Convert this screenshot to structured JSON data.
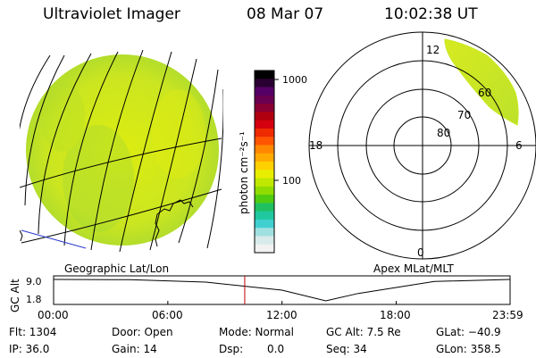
{
  "header": {
    "instrument": "Ultraviolet Imager",
    "date": "08 Mar 07",
    "time": "10:02:38 UT"
  },
  "panels": {
    "left_caption": "Geographic Lat/Lon",
    "right_caption": "Apex MLat/MLT"
  },
  "colorbar": {
    "label": "photon cm⁻²s⁻¹",
    "ticks": [
      "1000",
      "100"
    ],
    "colors": [
      "#000000",
      "#2a0033",
      "#550066",
      "#6a0052",
      "#8a0033",
      "#b00010",
      "#d40010",
      "#ee2a00",
      "#ff5500",
      "#ff8800",
      "#ffaa00",
      "#ffd000",
      "#e8ee00",
      "#c0e800",
      "#90dc00",
      "#50cc10",
      "#20c060",
      "#20c8a0",
      "#40d0d0",
      "#a0e0e0",
      "#d8eaea",
      "#f2f2f2"
    ],
    "scale": "log"
  },
  "polar": {
    "mlt_labels": [
      "12",
      "18",
      "6",
      "0"
    ],
    "lat_labels": [
      "60",
      "70",
      "80"
    ]
  },
  "timeline": {
    "ylabel": "GC Alt",
    "yticks": [
      "9.0",
      "1.8"
    ],
    "xticks": [
      "00:00",
      "06:00",
      "12:00",
      "18:00",
      "23:59"
    ],
    "current_time_hours": 10.04
  },
  "info": {
    "flt": "Flt: 1304",
    "ip": "IP: 36.0",
    "door": "Door: Open",
    "gain": "Gain: 14",
    "mode": "Mode: Normal",
    "dsp_label": "Dsp:",
    "dsp_value": "0.0",
    "gcalt": "GC Alt: 7.5 Re",
    "seq": "Seq: 34",
    "glat": "GLat: −40.9",
    "glon": "GLon: 358.5"
  },
  "chart_data": [
    {
      "type": "heatmap",
      "title": "Geographic Lat/Lon",
      "description_values": "Earth disk emission, mostly ~100-200 photon cm^-2 s^-1 (yellow-green)"
    },
    {
      "type": "line",
      "title": "",
      "ylabel": "GC Alt",
      "xlabel": "",
      "x": [
        0,
        4,
        8,
        12,
        14.3,
        16,
        20,
        23.98
      ],
      "values": [
        9.0,
        8.9,
        8.1,
        5.4,
        1.8,
        4.3,
        8.3,
        9.0
      ],
      "xlim": [
        0,
        23.98
      ],
      "ylim": [
        1.8,
        9.0
      ],
      "xticks": [
        "00:00",
        "06:00",
        "12:00",
        "18:00",
        "23:59"
      ]
    }
  ]
}
